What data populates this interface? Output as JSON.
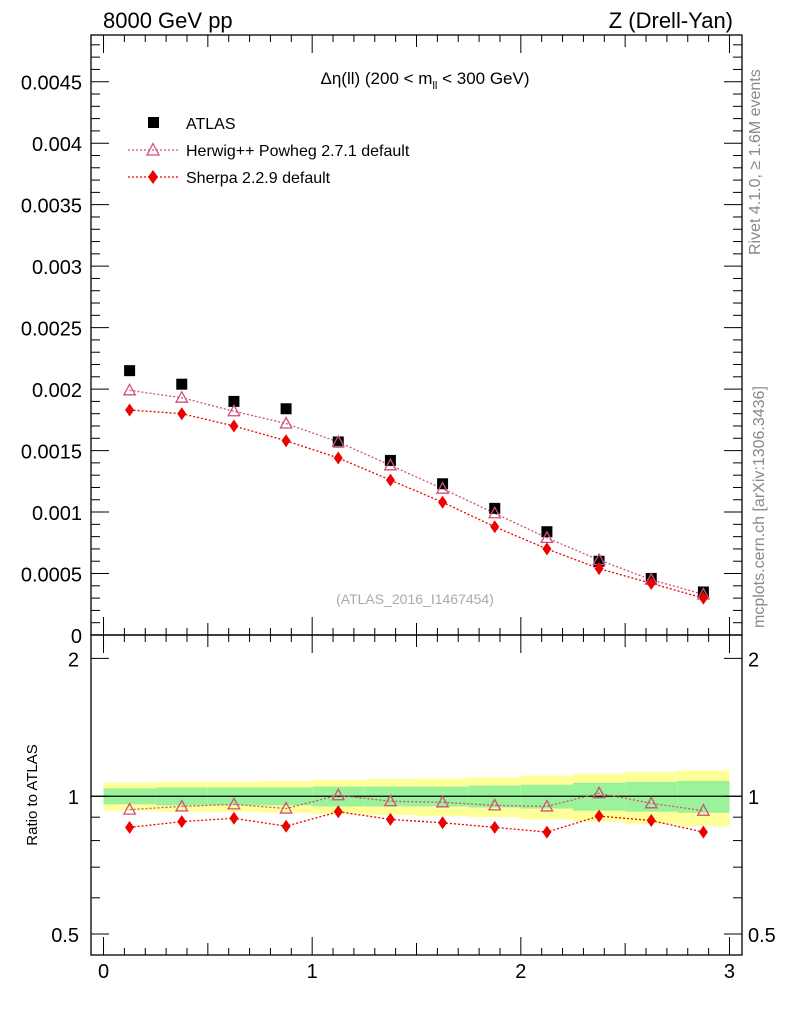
{
  "header": {
    "energy_label": "8000 GeV pp",
    "process_label": "Z (Drell-Yan)"
  },
  "side": {
    "rivet_label": "Rivet 4.1.0, ≥ 1.6M events",
    "source_label": "mcplots.cern.ch [arXiv:1306.3436]"
  },
  "watermark": "(ATLAS_2016_I1467454)",
  "colors": {
    "atlas": "#000000",
    "herwig": "#d0507a",
    "sherpa": "#ee0000",
    "band_inner": "#9af39a",
    "band_outer": "#ffff99"
  },
  "chart_data": [
    {
      "type": "scatter",
      "panel": "main",
      "title_prefix": "Δη(ll) (200 < m",
      "title_sub": "ll",
      "title_suffix": " < 300 GeV)",
      "xlabel": "",
      "ylabel": "",
      "xlim": [
        -0.06,
        3.06
      ],
      "ylim": [
        0,
        0.00488
      ],
      "y_ticks": [
        "0",
        "0.0005",
        "0.001",
        "0.0015",
        "0.002",
        "0.0025",
        "0.003",
        "0.0035",
        "0.004",
        "0.0045"
      ],
      "y_tick_values": [
        0,
        0.0005,
        0.001,
        0.0015,
        0.002,
        0.0025,
        0.003,
        0.0035,
        0.004,
        0.0045
      ],
      "legend_position": "top-left",
      "series": [
        {
          "name": "ATLAS",
          "marker": "square",
          "x": [
            0.125,
            0.375,
            0.625,
            0.875,
            1.125,
            1.375,
            1.625,
            1.875,
            2.125,
            2.375,
            2.625,
            2.875
          ],
          "values": [
            0.00215,
            0.00204,
            0.0019,
            0.00184,
            0.00157,
            0.00142,
            0.00123,
            0.00103,
            0.00084,
            0.0006,
            0.00046,
            0.00035
          ]
        },
        {
          "name": "Herwig++ Powheg 2.7.1 default",
          "marker": "open-triangle",
          "line": "dotted",
          "x": [
            0.125,
            0.375,
            0.625,
            0.875,
            1.125,
            1.375,
            1.625,
            1.875,
            2.125,
            2.375,
            2.625,
            2.875
          ],
          "values": [
            0.00199,
            0.00193,
            0.00182,
            0.00172,
            0.00157,
            0.00138,
            0.00119,
            0.00099,
            0.00079,
            0.00061,
            0.00045,
            0.00033
          ]
        },
        {
          "name": "Sherpa 2.2.9 default",
          "marker": "diamond",
          "line": "dotted",
          "x": [
            0.125,
            0.375,
            0.625,
            0.875,
            1.125,
            1.375,
            1.625,
            1.875,
            2.125,
            2.375,
            2.625,
            2.875
          ],
          "values": [
            0.00183,
            0.0018,
            0.0017,
            0.00158,
            0.00144,
            0.00126,
            0.00108,
            0.00088,
            0.0007,
            0.00054,
            0.00042,
            0.0003
          ]
        }
      ]
    },
    {
      "type": "line",
      "panel": "ratio",
      "ylabel": "Ratio to ATLAS",
      "xlim": [
        -0.06,
        3.06
      ],
      "ylim": [
        0.45,
        2.25
      ],
      "x_ticks": [
        "0",
        "1",
        "2",
        "3"
      ],
      "x_tick_values": [
        0,
        1,
        2,
        3
      ],
      "y_ticks": [
        "0.5",
        "1",
        "2"
      ],
      "y_tick_values": [
        0.5,
        1,
        2
      ],
      "reference": 1,
      "bins": [
        [
          0,
          0.25
        ],
        [
          0.25,
          0.5
        ],
        [
          0.5,
          0.75
        ],
        [
          0.75,
          1.0
        ],
        [
          1.0,
          1.25
        ],
        [
          1.25,
          1.5
        ],
        [
          1.5,
          1.75
        ],
        [
          1.75,
          2.0
        ],
        [
          2.0,
          2.25
        ],
        [
          2.25,
          2.5
        ],
        [
          2.5,
          2.75
        ],
        [
          2.75,
          3.0
        ]
      ],
      "band_inner": [
        0.04,
        0.045,
        0.045,
        0.045,
        0.05,
        0.05,
        0.05,
        0.055,
        0.06,
        0.07,
        0.075,
        0.08
      ],
      "band_outer": [
        0.07,
        0.075,
        0.075,
        0.08,
        0.085,
        0.09,
        0.095,
        0.1,
        0.11,
        0.12,
        0.13,
        0.14
      ],
      "series": [
        {
          "name": "Herwig++ Powheg 2.7.1 default",
          "x": [
            0.125,
            0.375,
            0.625,
            0.875,
            1.125,
            1.375,
            1.625,
            1.875,
            2.125,
            2.375,
            2.625,
            2.875
          ],
          "values": [
            0.935,
            0.95,
            0.96,
            0.94,
            1.005,
            0.975,
            0.97,
            0.955,
            0.95,
            1.015,
            0.965,
            0.93
          ]
        },
        {
          "name": "Sherpa 2.2.9 default",
          "x": [
            0.125,
            0.375,
            0.625,
            0.875,
            1.125,
            1.375,
            1.625,
            1.875,
            2.125,
            2.375,
            2.625,
            2.875
          ],
          "values": [
            0.855,
            0.88,
            0.895,
            0.86,
            0.925,
            0.89,
            0.875,
            0.855,
            0.835,
            0.905,
            0.885,
            0.835
          ]
        }
      ]
    }
  ]
}
